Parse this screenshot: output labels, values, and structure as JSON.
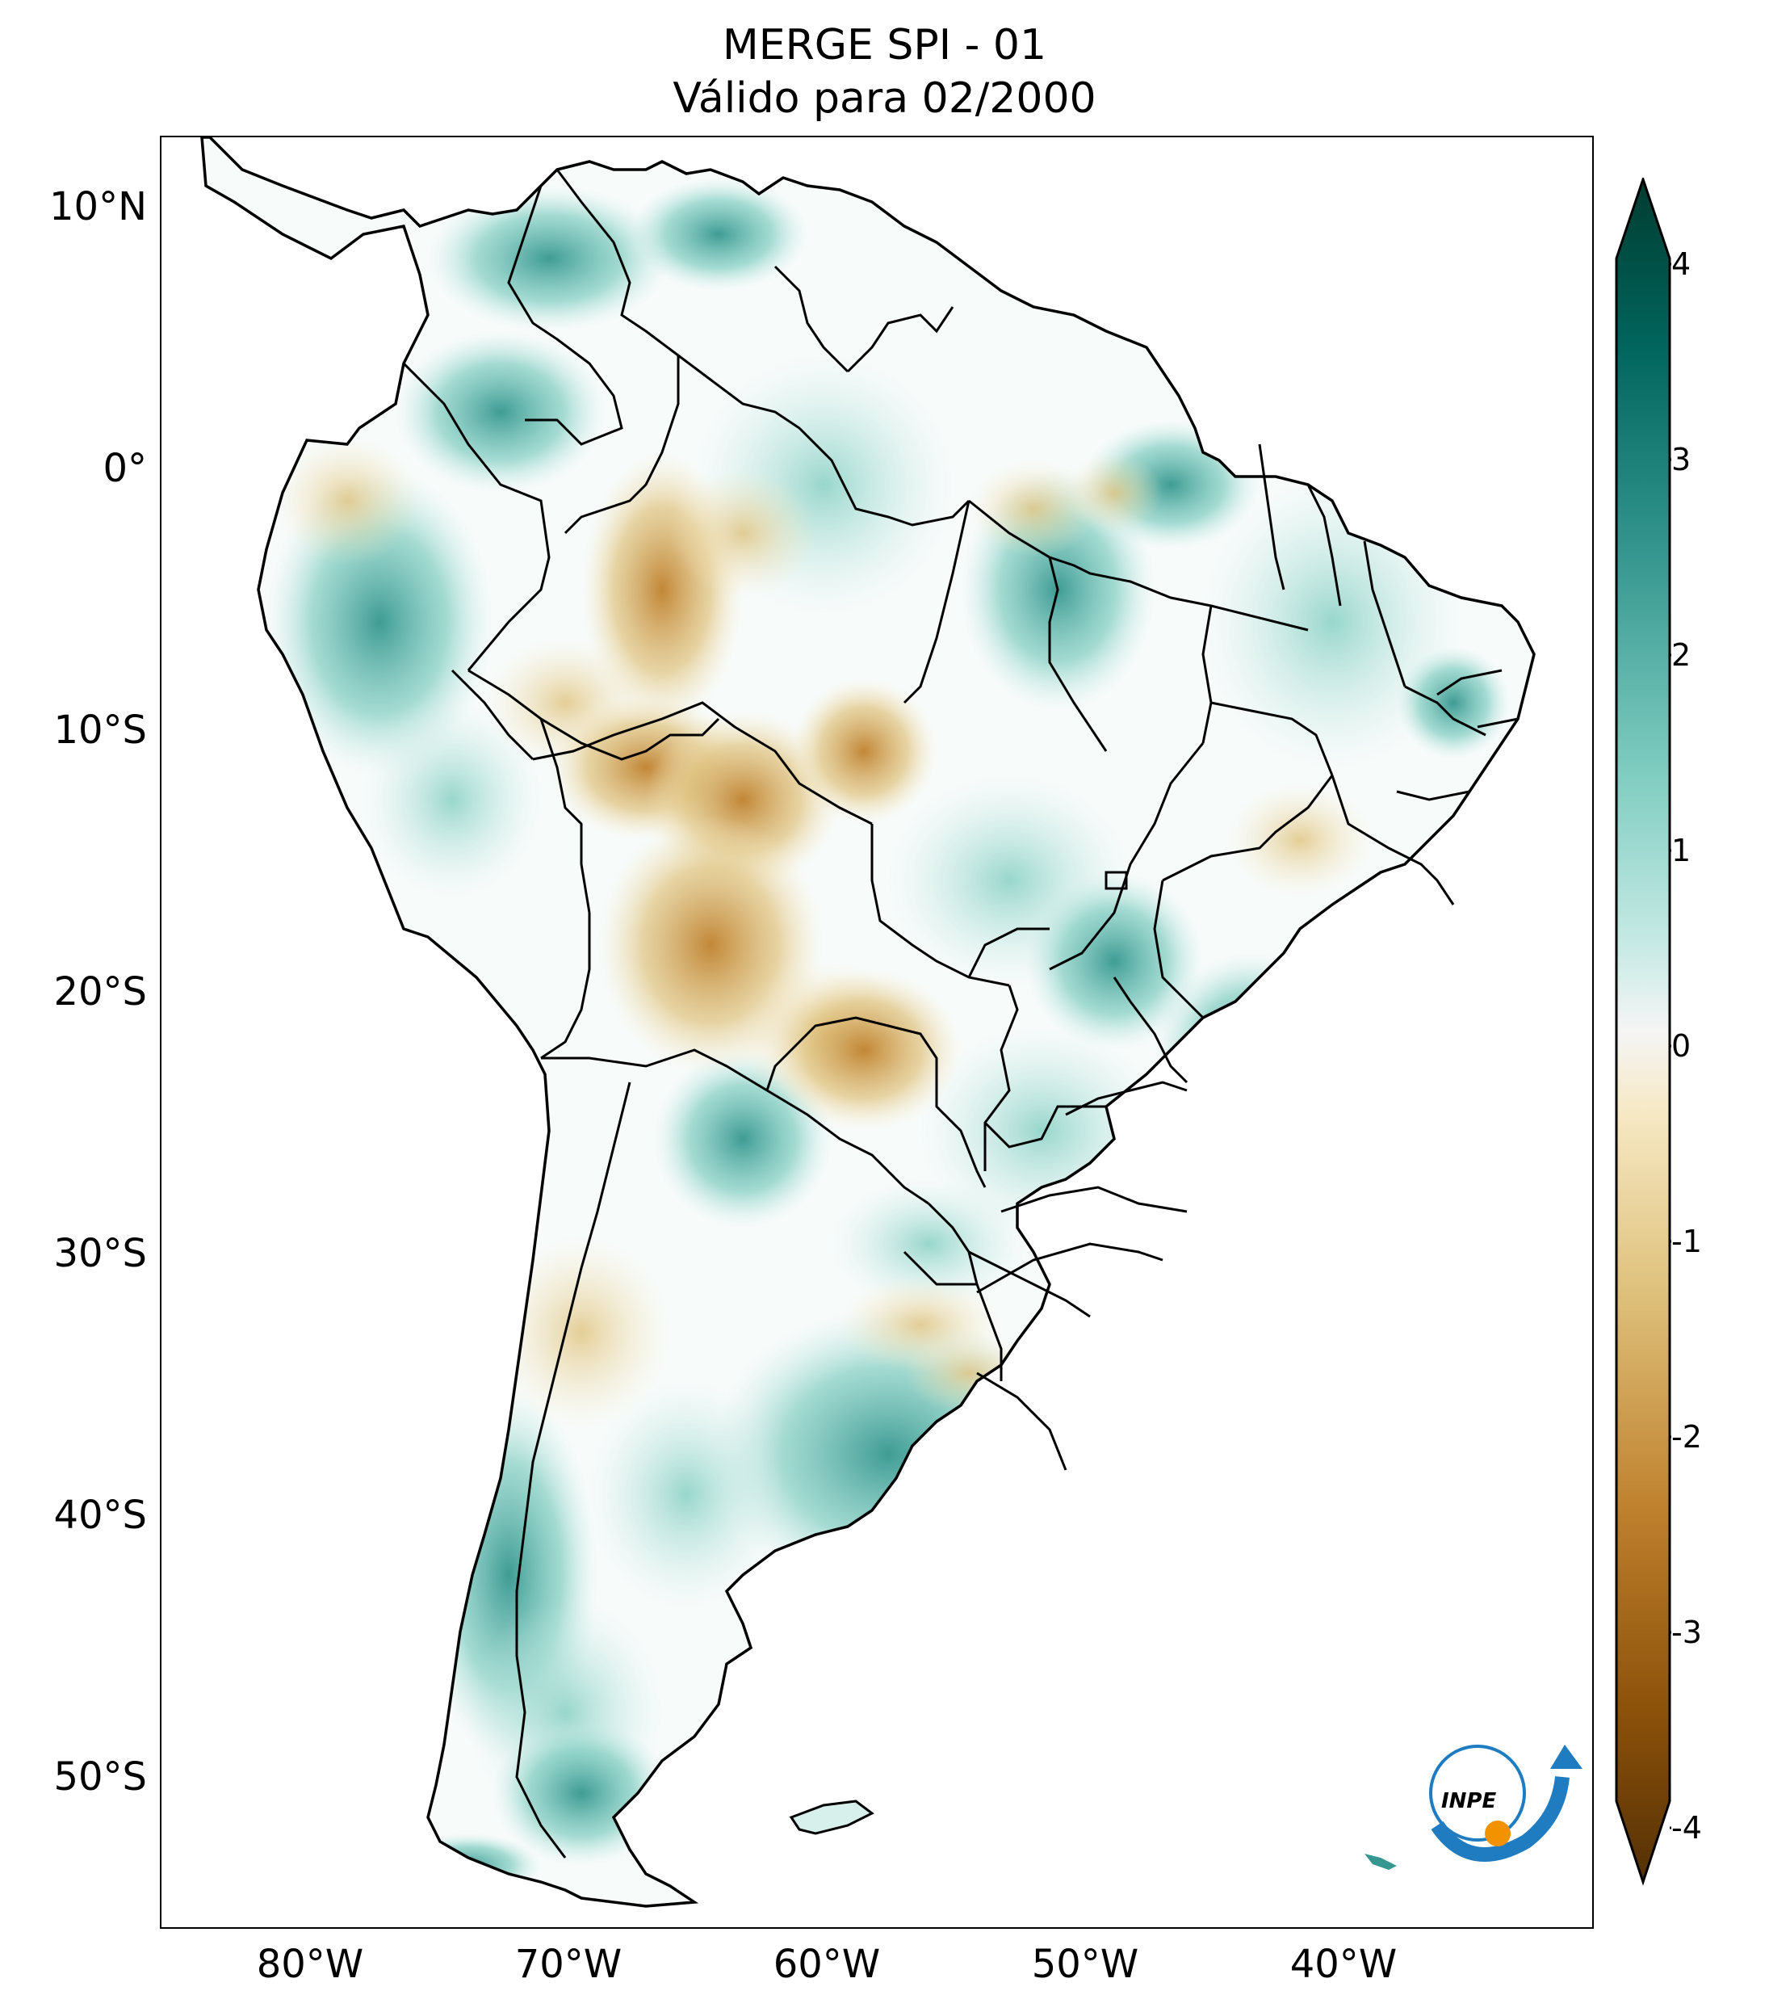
{
  "title_line1": "MERGE   SPI - 01",
  "title_line2": "Válido para 02/2000",
  "lat_labels": [
    "10°N",
    "0°",
    "10°S",
    "20°S",
    "30°S",
    "40°S",
    "50°S"
  ],
  "lon_labels": [
    "80°W",
    "70°W",
    "60°W",
    "50°W",
    "40°W"
  ],
  "colorbar": {
    "ticks": [
      "4",
      "3",
      "2",
      "1",
      "0",
      "-1",
      "-2",
      "-3",
      "-4"
    ],
    "colors": [
      "#003c30",
      "#01665e",
      "#35978f",
      "#80cdc1",
      "#c7eae5",
      "#f5f5f5",
      "#f6e8c3",
      "#dfc27d",
      "#bf812d",
      "#8c510a",
      "#543005"
    ]
  },
  "logo_text": "INPE"
}
